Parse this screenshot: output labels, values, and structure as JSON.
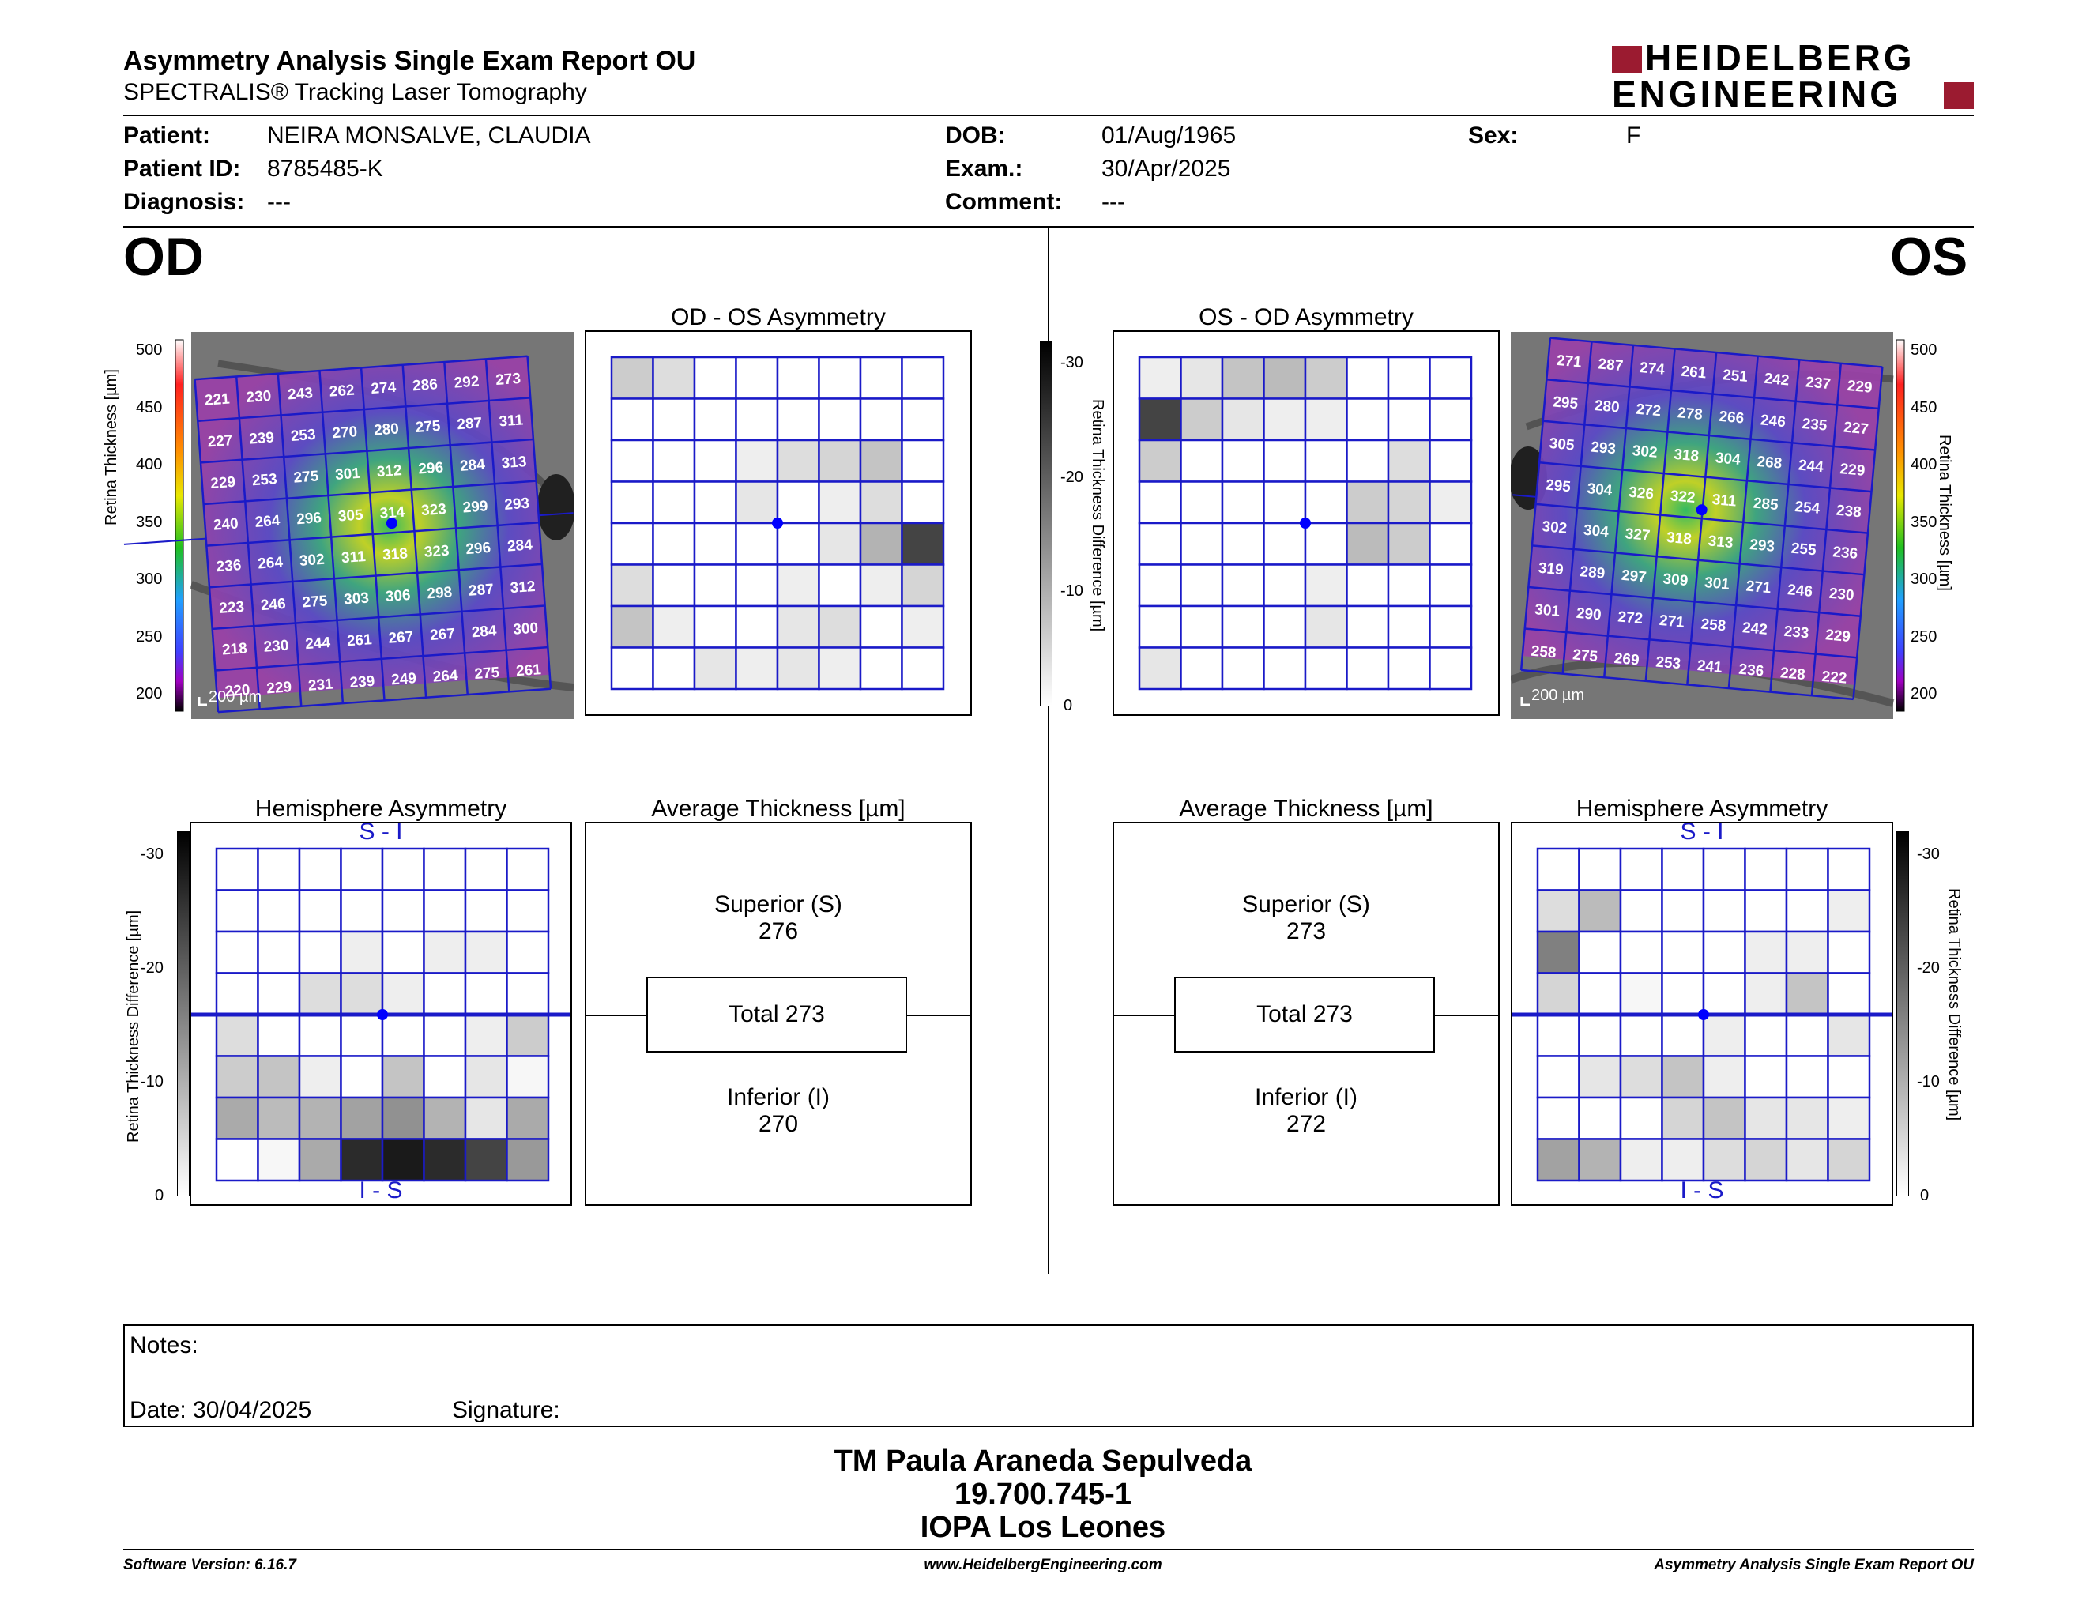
{
  "header": {
    "title": "Asymmetry Analysis Single Exam Report OU",
    "subtitle": "SPECTRALIS® Tracking Laser Tomography",
    "logo_line1": "HEIDELBERG",
    "logo_line2": "ENGINEERING"
  },
  "patient": {
    "patient_label": "Patient:",
    "patient_value": "NEIRA MONSALVE, CLAUDIA",
    "id_label": "Patient ID:",
    "id_value": "8785485-K",
    "diagnosis_label": "Diagnosis:",
    "diagnosis_value": "---",
    "dob_label": "DOB:",
    "dob_value": "01/Aug/1965",
    "exam_label": "Exam.:",
    "exam_value": "30/Apr/2025",
    "comment_label": "Comment:",
    "comment_value": "---",
    "sex_label": "Sex:",
    "sex_value": "F"
  },
  "eyes": {
    "od": "OD",
    "os": "OS"
  },
  "colors": {
    "grid_blue": "#1a1ac8",
    "fovea": "#0000ff"
  },
  "color_scale": {
    "label": "Retina Thickness [µm]",
    "ticks": [
      "500",
      "450",
      "400",
      "350",
      "300",
      "250",
      "200"
    ]
  },
  "diff_scale": {
    "label": "Retina Thickness Difference [µm]",
    "ticks": [
      "-30",
      "-20",
      "-10",
      "0"
    ]
  },
  "scale_bar": "200 µm",
  "od_map": {
    "grid": [
      [
        "221",
        "230",
        "243",
        "262",
        "274",
        "286",
        "292",
        "273"
      ],
      [
        "227",
        "239",
        "253",
        "270",
        "280",
        "275",
        "287",
        "311"
      ],
      [
        "229",
        "253",
        "275",
        "301",
        "312",
        "296",
        "284",
        "313"
      ],
      [
        "240",
        "264",
        "296",
        "305",
        "314",
        "323",
        "299",
        "293"
      ],
      [
        "236",
        "264",
        "302",
        "311",
        "318",
        "323",
        "296",
        "284"
      ],
      [
        "223",
        "246",
        "275",
        "303",
        "306",
        "298",
        "287",
        "312"
      ],
      [
        "218",
        "230",
        "244",
        "261",
        "267",
        "267",
        "284",
        "300"
      ],
      [
        "220",
        "229",
        "231",
        "239",
        "249",
        "264",
        "275",
        "261"
      ]
    ]
  },
  "os_map": {
    "grid": [
      [
        "271",
        "287",
        "274",
        "261",
        "251",
        "242",
        "237",
        "229"
      ],
      [
        "295",
        "280",
        "272",
        "278",
        "266",
        "246",
        "235",
        "227"
      ],
      [
        "305",
        "293",
        "302",
        "318",
        "304",
        "268",
        "244",
        "229"
      ],
      [
        "295",
        "304",
        "326",
        "322",
        "311",
        "285",
        "254",
        "238"
      ],
      [
        "302",
        "304",
        "327",
        "318",
        "313",
        "293",
        "255",
        "236"
      ],
      [
        "319",
        "289",
        "297",
        "309",
        "301",
        "271",
        "246",
        "230"
      ],
      [
        "301",
        "290",
        "272",
        "271",
        "258",
        "242",
        "233",
        "229"
      ],
      [
        "258",
        "275",
        "269",
        "253",
        "241",
        "236",
        "228",
        "222"
      ]
    ]
  },
  "od_os_asym": {
    "title": "OD - OS Asymmetry",
    "grid": [
      [
        -6,
        -4,
        0,
        0,
        0,
        0,
        0,
        0
      ],
      [
        0,
        0,
        0,
        0,
        0,
        0,
        0,
        0
      ],
      [
        0,
        0,
        0,
        -2,
        -4,
        -5,
        -7,
        0
      ],
      [
        0,
        0,
        0,
        -3,
        0,
        -2,
        -4,
        0
      ],
      [
        0,
        0,
        0,
        0,
        0,
        -3,
        -9,
        -22
      ],
      [
        -4,
        0,
        0,
        0,
        -2,
        0,
        -2,
        -5
      ],
      [
        -7,
        -2,
        0,
        0,
        -3,
        -4,
        0,
        -2
      ],
      [
        0,
        0,
        -3,
        -2,
        -3,
        -2,
        0,
        0
      ]
    ]
  },
  "os_od_asym": {
    "title": "OS - OD Asymmetry",
    "grid": [
      [
        -2,
        -3,
        -7,
        -8,
        -6,
        0,
        0,
        0
      ],
      [
        -22,
        -6,
        -3,
        -2,
        -2,
        0,
        0,
        0
      ],
      [
        -6,
        0,
        0,
        0,
        0,
        0,
        -4,
        0
      ],
      [
        0,
        0,
        0,
        0,
        0,
        -6,
        -5,
        -2
      ],
      [
        0,
        0,
        0,
        0,
        0,
        -8,
        -6,
        0
      ],
      [
        0,
        0,
        0,
        0,
        -2,
        0,
        0,
        0
      ],
      [
        0,
        0,
        0,
        0,
        -3,
        0,
        0,
        0
      ],
      [
        -3,
        0,
        0,
        0,
        0,
        0,
        0,
        0
      ]
    ]
  },
  "od_hemi": {
    "title": "Hemisphere Asymmetry",
    "top_label": "S - I",
    "bottom_label": "I - S",
    "grid": [
      [
        0,
        0,
        0,
        0,
        0,
        0,
        0,
        0
      ],
      [
        0,
        0,
        0,
        0,
        0,
        0,
        0,
        0
      ],
      [
        0,
        0,
        0,
        -2,
        0,
        -2,
        -2,
        0
      ],
      [
        0,
        0,
        -4,
        -4,
        -2,
        0,
        0,
        0
      ],
      [
        -4,
        0,
        0,
        0,
        0,
        0,
        -2,
        -6
      ],
      [
        -6,
        -7,
        -2,
        0,
        -7,
        0,
        -3,
        -1
      ],
      [
        -10,
        -8,
        -9,
        -11,
        -13,
        -9,
        -3,
        -10
      ],
      [
        0,
        -1,
        -10,
        -25,
        -27,
        -25,
        -22,
        -12
      ]
    ]
  },
  "os_hemi": {
    "title": "Hemisphere Asymmetry",
    "top_label": "S - I",
    "bottom_label": "I - S",
    "grid": [
      [
        0,
        0,
        0,
        0,
        0,
        0,
        0,
        0
      ],
      [
        -4,
        -8,
        0,
        0,
        0,
        0,
        0,
        -2
      ],
      [
        -15,
        0,
        0,
        0,
        0,
        -2,
        -2,
        0
      ],
      [
        -5,
        0,
        -1,
        0,
        0,
        -2,
        -7,
        0
      ],
      [
        0,
        0,
        0,
        0,
        -2,
        0,
        0,
        -3
      ],
      [
        0,
        -3,
        -4,
        -7,
        -2,
        0,
        0,
        0
      ],
      [
        0,
        0,
        0,
        -5,
        -7,
        -3,
        -3,
        -2
      ],
      [
        -11,
        -9,
        -2,
        -2,
        -4,
        -5,
        -3,
        -5
      ]
    ]
  },
  "od_avg": {
    "title": "Average Thickness [µm]",
    "superior_label": "Superior (S)",
    "superior_value": "276",
    "total_label": "Total 273",
    "inferior_label": "Inferior (I)",
    "inferior_value": "270"
  },
  "os_avg": {
    "title": "Average Thickness [µm]",
    "superior_label": "Superior (S)",
    "superior_value": "273",
    "total_label": "Total 273",
    "inferior_label": "Inferior (I)",
    "inferior_value": "272"
  },
  "notes": {
    "notes_label": "Notes:",
    "date_label": "Date: 30/04/2025",
    "signature_label": "Signature:"
  },
  "signature_block": {
    "line1": "TM Paula Araneda Sepulveda",
    "line2": "19.700.745-1",
    "line3": "IOPA Los Leones"
  },
  "footer": {
    "software": "Software Version: 6.16.7",
    "website": "www.HeidelbergEngineering.com",
    "report": "Asymmetry Analysis Single Exam Report OU"
  }
}
